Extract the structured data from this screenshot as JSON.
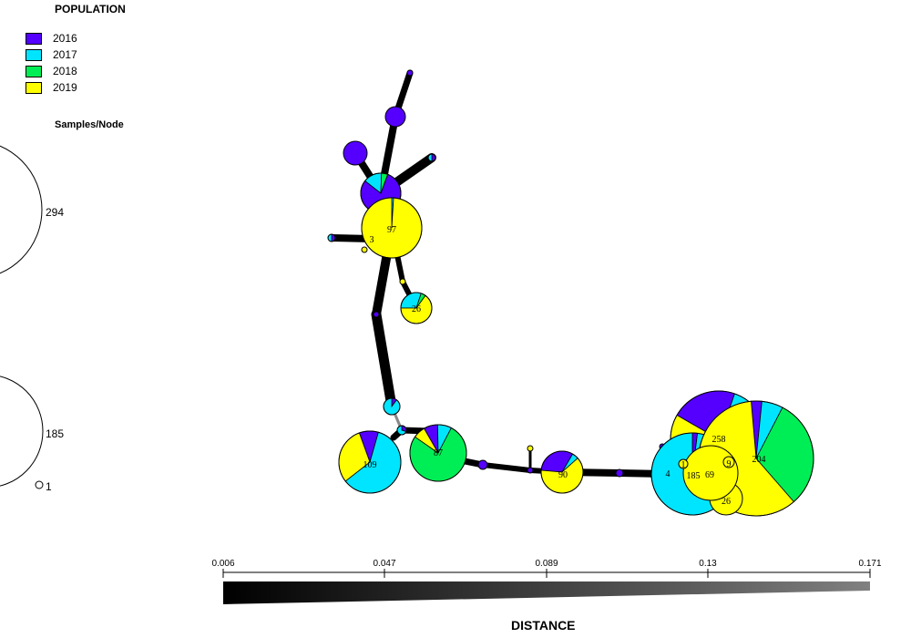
{
  "legend": {
    "title": "POPULATION",
    "items": [
      {
        "label": "2016",
        "color": "#5500ff"
      },
      {
        "label": "2017",
        "color": "#00e5ff"
      },
      {
        "label": "2018",
        "color": "#00ee55"
      },
      {
        "label": "2019",
        "color": "#ffff00"
      }
    ]
  },
  "samples_per_node": {
    "title": "Samples/Node",
    "ref_large": "294",
    "ref_medium": "185",
    "ref_small": "1"
  },
  "distance_scale": {
    "title": "DISTANCE",
    "ticks": [
      "0.006",
      "0.047",
      "0.089",
      "0.13",
      "0.171"
    ]
  },
  "node_labels": [
    "97",
    "3",
    "26",
    "109",
    "87",
    "90",
    "258",
    "4",
    "185",
    "69",
    "9",
    "204",
    "26",
    "1"
  ]
}
